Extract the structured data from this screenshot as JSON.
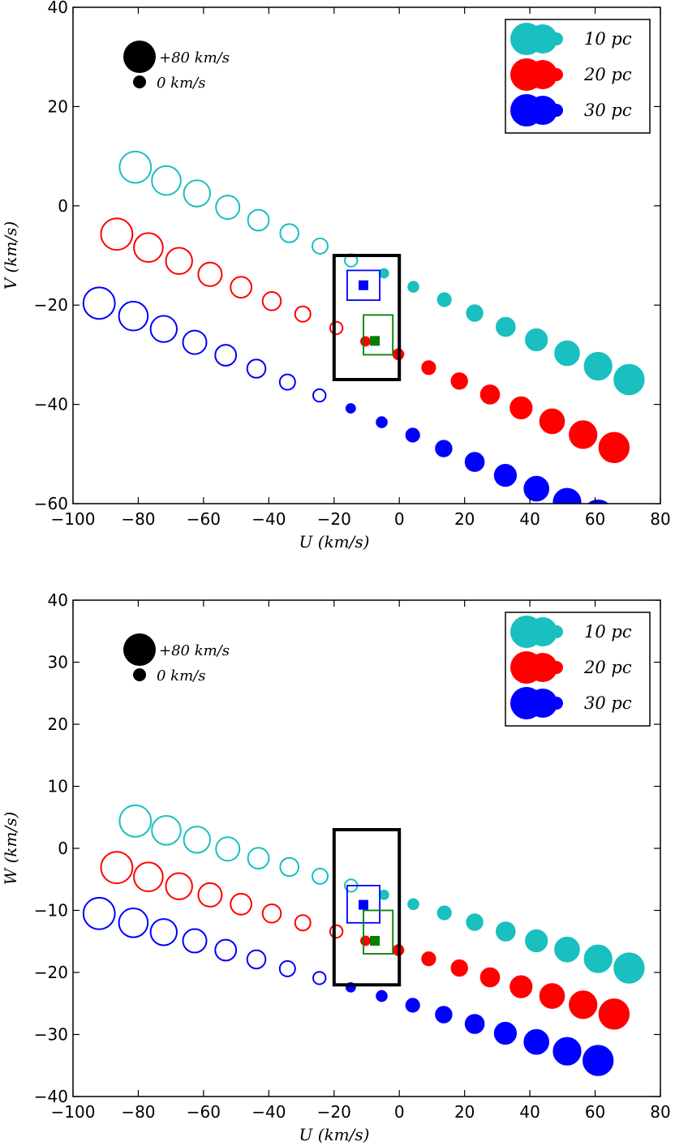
{
  "colors": {
    "cyan": "#1abfbf",
    "red": "#ff0000",
    "blue": "#0000ff",
    "green": "#008000",
    "black": "#000000"
  },
  "size_legend": {
    "large_label": "+80 km/s",
    "small_label": "0 km/s"
  },
  "legend": [
    {
      "label": "10 pc",
      "color": "#1abfbf"
    },
    {
      "label": "20 pc",
      "color": "#ff0000"
    },
    {
      "label": "30 pc",
      "color": "#0000ff"
    }
  ],
  "chart_data": [
    {
      "type": "scatter",
      "xlabel": "U (km/s)",
      "ylabel": "V (km/s)",
      "xlim": [
        -100,
        80
      ],
      "ylim": [
        -60,
        40
      ],
      "xticks": [
        "−100",
        "−80",
        "−60",
        "−40",
        "−20",
        "0",
        "20",
        "40",
        "60",
        "80"
      ],
      "yticks": [
        "−60",
        "−40",
        "−20",
        "0",
        "20",
        "40"
      ],
      "grid": false,
      "legend_position": "top-right",
      "series": [
        {
          "name": "10 pc",
          "color": "#1abfbf",
          "points": [
            {
              "x": -80.9,
              "y": 7.8,
              "filled": false,
              "speed": 80
            },
            {
              "x": -71.4,
              "y": 5.1,
              "filled": false,
              "speed": 71
            },
            {
              "x": -62.0,
              "y": 2.5,
              "filled": false,
              "speed": 62
            },
            {
              "x": -52.6,
              "y": -0.3,
              "filled": false,
              "speed": 53
            },
            {
              "x": -43.2,
              "y": -2.9,
              "filled": false,
              "speed": 44
            },
            {
              "x": -33.7,
              "y": -5.5,
              "filled": false,
              "speed": 35
            },
            {
              "x": -24.3,
              "y": -8.1,
              "filled": false,
              "speed": 25
            },
            {
              "x": -14.8,
              "y": -11.0,
              "filled": false,
              "speed": 15
            },
            {
              "x": -4.7,
              "y": -13.6,
              "filled": true,
              "speed": 5
            },
            {
              "x": 4.3,
              "y": -16.3,
              "filled": true,
              "speed": 10
            },
            {
              "x": 13.8,
              "y": -18.9,
              "filled": true,
              "speed": 20
            },
            {
              "x": 23.1,
              "y": -21.6,
              "filled": true,
              "speed": 29
            },
            {
              "x": 32.6,
              "y": -24.4,
              "filled": true,
              "speed": 38
            },
            {
              "x": 42.0,
              "y": -27.0,
              "filled": true,
              "speed": 48
            },
            {
              "x": 51.4,
              "y": -29.7,
              "filled": true,
              "speed": 57
            },
            {
              "x": 60.9,
              "y": -32.3,
              "filled": true,
              "speed": 67
            },
            {
              "x": 70.4,
              "y": -35.0,
              "filled": true,
              "speed": 76
            }
          ]
        },
        {
          "name": "20 pc",
          "color": "#ff0000",
          "points": [
            {
              "x": -86.6,
              "y": -5.7,
              "filled": false,
              "speed": 80
            },
            {
              "x": -76.9,
              "y": -8.4,
              "filled": false,
              "speed": 71
            },
            {
              "x": -67.5,
              "y": -11.1,
              "filled": false,
              "speed": 62
            },
            {
              "x": -58.0,
              "y": -13.8,
              "filled": false,
              "speed": 53
            },
            {
              "x": -48.5,
              "y": -16.4,
              "filled": false,
              "speed": 44
            },
            {
              "x": -39.1,
              "y": -19.2,
              "filled": false,
              "speed": 35
            },
            {
              "x": -29.6,
              "y": -21.8,
              "filled": false,
              "speed": 25
            },
            {
              "x": -19.3,
              "y": -24.6,
              "filled": false,
              "speed": 15
            },
            {
              "x": -10.4,
              "y": -27.3,
              "filled": true,
              "speed": 5
            },
            {
              "x": -0.3,
              "y": -29.9,
              "filled": true,
              "speed": 10
            },
            {
              "x": 9.0,
              "y": -32.6,
              "filled": true,
              "speed": 20
            },
            {
              "x": 18.4,
              "y": -35.3,
              "filled": true,
              "speed": 29
            },
            {
              "x": 27.8,
              "y": -38.0,
              "filled": true,
              "speed": 38
            },
            {
              "x": 37.3,
              "y": -40.7,
              "filled": true,
              "speed": 48
            },
            {
              "x": 46.8,
              "y": -43.4,
              "filled": true,
              "speed": 57
            },
            {
              "x": 56.3,
              "y": -46.1,
              "filled": true,
              "speed": 67
            },
            {
              "x": 65.8,
              "y": -48.7,
              "filled": true,
              "speed": 76
            }
          ]
        },
        {
          "name": "30 pc",
          "color": "#0000ff",
          "points": [
            {
              "x": -92.0,
              "y": -19.6,
              "filled": false,
              "speed": 80
            },
            {
              "x": -81.5,
              "y": -22.2,
              "filled": false,
              "speed": 71
            },
            {
              "x": -72.2,
              "y": -24.8,
              "filled": false,
              "speed": 62
            },
            {
              "x": -62.7,
              "y": -27.5,
              "filled": false,
              "speed": 53
            },
            {
              "x": -53.2,
              "y": -30.1,
              "filled": false,
              "speed": 44
            },
            {
              "x": -43.8,
              "y": -32.8,
              "filled": false,
              "speed": 35
            },
            {
              "x": -34.3,
              "y": -35.5,
              "filled": false,
              "speed": 25
            },
            {
              "x": -24.5,
              "y": -38.2,
              "filled": false,
              "speed": 15
            },
            {
              "x": -14.9,
              "y": -40.8,
              "filled": true,
              "speed": 5
            },
            {
              "x": -5.4,
              "y": -43.6,
              "filled": true,
              "speed": 10
            },
            {
              "x": 4.1,
              "y": -46.2,
              "filled": true,
              "speed": 20
            },
            {
              "x": 13.6,
              "y": -48.9,
              "filled": true,
              "speed": 29
            },
            {
              "x": 23.1,
              "y": -51.6,
              "filled": true,
              "speed": 38
            },
            {
              "x": 32.5,
              "y": -54.3,
              "filled": true,
              "speed": 48
            },
            {
              "x": 42.0,
              "y": -57.0,
              "filled": true,
              "speed": 57
            },
            {
              "x": 51.4,
              "y": -59.7,
              "filled": true,
              "speed": 67
            },
            {
              "x": 60.9,
              "y": -62.3,
              "filled": true,
              "speed": 76
            }
          ]
        }
      ],
      "boxes": [
        {
          "x0": -20,
          "x1": 0,
          "y0": -35,
          "y1": -10,
          "color": "#000000",
          "width": "thick"
        },
        {
          "x0": -16,
          "x1": -6,
          "y0": -19,
          "y1": -13,
          "color": "#0000ff",
          "width": "thin"
        },
        {
          "x0": -11,
          "x1": -2,
          "y0": -30,
          "y1": -22,
          "color": "#008000",
          "width": "thin"
        }
      ],
      "squares": [
        {
          "x": -11,
          "y": -16,
          "color": "#0000ff"
        },
        {
          "x": -7.5,
          "y": -27.2,
          "color": "#008000"
        }
      ]
    },
    {
      "type": "scatter",
      "xlabel": "U (km/s)",
      "ylabel": "W (km/s)",
      "xlim": [
        -100,
        80
      ],
      "ylim": [
        -40,
        40
      ],
      "xticks": [
        "−100",
        "−80",
        "−60",
        "−40",
        "−20",
        "0",
        "20",
        "40",
        "60",
        "80"
      ],
      "yticks": [
        "−40",
        "−30",
        "−20",
        "−10",
        "0",
        "10",
        "20",
        "30",
        "40"
      ],
      "grid": false,
      "legend_position": "top-right",
      "series": [
        {
          "name": "10 pc",
          "color": "#1abfbf",
          "points": [
            {
              "x": -80.9,
              "y": 4.4,
              "filled": false,
              "speed": 80
            },
            {
              "x": -71.4,
              "y": 2.9,
              "filled": false,
              "speed": 71
            },
            {
              "x": -62.0,
              "y": 1.4,
              "filled": false,
              "speed": 62
            },
            {
              "x": -52.6,
              "y": -0.1,
              "filled": false,
              "speed": 53
            },
            {
              "x": -43.2,
              "y": -1.6,
              "filled": false,
              "speed": 44
            },
            {
              "x": -33.7,
              "y": -3.0,
              "filled": false,
              "speed": 35
            },
            {
              "x": -24.3,
              "y": -4.5,
              "filled": false,
              "speed": 25
            },
            {
              "x": -14.8,
              "y": -6.0,
              "filled": false,
              "speed": 15
            },
            {
              "x": -4.7,
              "y": -7.5,
              "filled": true,
              "speed": 5
            },
            {
              "x": 4.3,
              "y": -9.0,
              "filled": true,
              "speed": 10
            },
            {
              "x": 13.8,
              "y": -10.4,
              "filled": true,
              "speed": 20
            },
            {
              "x": 23.1,
              "y": -11.9,
              "filled": true,
              "speed": 29
            },
            {
              "x": 32.6,
              "y": -13.4,
              "filled": true,
              "speed": 38
            },
            {
              "x": 42.0,
              "y": -14.9,
              "filled": true,
              "speed": 48
            },
            {
              "x": 51.4,
              "y": -16.3,
              "filled": true,
              "speed": 57
            },
            {
              "x": 60.9,
              "y": -17.8,
              "filled": true,
              "speed": 67
            },
            {
              "x": 70.4,
              "y": -19.3,
              "filled": true,
              "speed": 76
            }
          ]
        },
        {
          "name": "20 pc",
          "color": "#ff0000",
          "points": [
            {
              "x": -86.6,
              "y": -3.1,
              "filled": false,
              "speed": 80
            },
            {
              "x": -76.9,
              "y": -4.6,
              "filled": false,
              "speed": 71
            },
            {
              "x": -67.5,
              "y": -6.1,
              "filled": false,
              "speed": 62
            },
            {
              "x": -58.0,
              "y": -7.5,
              "filled": false,
              "speed": 53
            },
            {
              "x": -48.5,
              "y": -9.0,
              "filled": false,
              "speed": 44
            },
            {
              "x": -39.1,
              "y": -10.5,
              "filled": false,
              "speed": 35
            },
            {
              "x": -29.6,
              "y": -12.0,
              "filled": false,
              "speed": 25
            },
            {
              "x": -19.3,
              "y": -13.4,
              "filled": false,
              "speed": 15
            },
            {
              "x": -10.4,
              "y": -14.9,
              "filled": true,
              "speed": 5
            },
            {
              "x": -0.3,
              "y": -16.4,
              "filled": true,
              "speed": 10
            },
            {
              "x": 9.0,
              "y": -17.8,
              "filled": true,
              "speed": 20
            },
            {
              "x": 18.4,
              "y": -19.3,
              "filled": true,
              "speed": 29
            },
            {
              "x": 27.8,
              "y": -20.8,
              "filled": true,
              "speed": 38
            },
            {
              "x": 37.3,
              "y": -22.3,
              "filled": true,
              "speed": 48
            },
            {
              "x": 46.8,
              "y": -23.8,
              "filled": true,
              "speed": 57
            },
            {
              "x": 56.3,
              "y": -25.2,
              "filled": true,
              "speed": 67
            },
            {
              "x": 65.8,
              "y": -26.7,
              "filled": true,
              "speed": 76
            }
          ]
        },
        {
          "name": "30 pc",
          "color": "#0000ff",
          "points": [
            {
              "x": -92.0,
              "y": -10.5,
              "filled": false,
              "speed": 80
            },
            {
              "x": -81.5,
              "y": -12.0,
              "filled": false,
              "speed": 71
            },
            {
              "x": -72.2,
              "y": -13.5,
              "filled": false,
              "speed": 62
            },
            {
              "x": -62.7,
              "y": -14.9,
              "filled": false,
              "speed": 53
            },
            {
              "x": -53.2,
              "y": -16.4,
              "filled": false,
              "speed": 44
            },
            {
              "x": -43.8,
              "y": -17.9,
              "filled": false,
              "speed": 35
            },
            {
              "x": -34.3,
              "y": -19.4,
              "filled": false,
              "speed": 25
            },
            {
              "x": -24.5,
              "y": -20.9,
              "filled": false,
              "speed": 15
            },
            {
              "x": -14.9,
              "y": -22.4,
              "filled": true,
              "speed": 5
            },
            {
              "x": -5.4,
              "y": -23.8,
              "filled": true,
              "speed": 10
            },
            {
              "x": 4.1,
              "y": -25.3,
              "filled": true,
              "speed": 20
            },
            {
              "x": 13.6,
              "y": -26.8,
              "filled": true,
              "speed": 29
            },
            {
              "x": 23.1,
              "y": -28.3,
              "filled": true,
              "speed": 38
            },
            {
              "x": 32.5,
              "y": -29.8,
              "filled": true,
              "speed": 48
            },
            {
              "x": 42.0,
              "y": -31.2,
              "filled": true,
              "speed": 57
            },
            {
              "x": 51.4,
              "y": -32.7,
              "filled": true,
              "speed": 67
            },
            {
              "x": 60.9,
              "y": -34.2,
              "filled": true,
              "speed": 76
            }
          ]
        }
      ],
      "boxes": [
        {
          "x0": -20,
          "x1": 0,
          "y0": -22,
          "y1": 3,
          "color": "#000000",
          "width": "thick"
        },
        {
          "x0": -16,
          "x1": -6,
          "y0": -12,
          "y1": -6,
          "color": "#0000ff",
          "width": "thin"
        },
        {
          "x0": -11,
          "x1": -2,
          "y0": -17,
          "y1": -10,
          "color": "#008000",
          "width": "thin"
        }
      ],
      "squares": [
        {
          "x": -11,
          "y": -9.1,
          "color": "#0000ff"
        },
        {
          "x": -7.5,
          "y": -14.9,
          "color": "#008000"
        }
      ]
    }
  ]
}
